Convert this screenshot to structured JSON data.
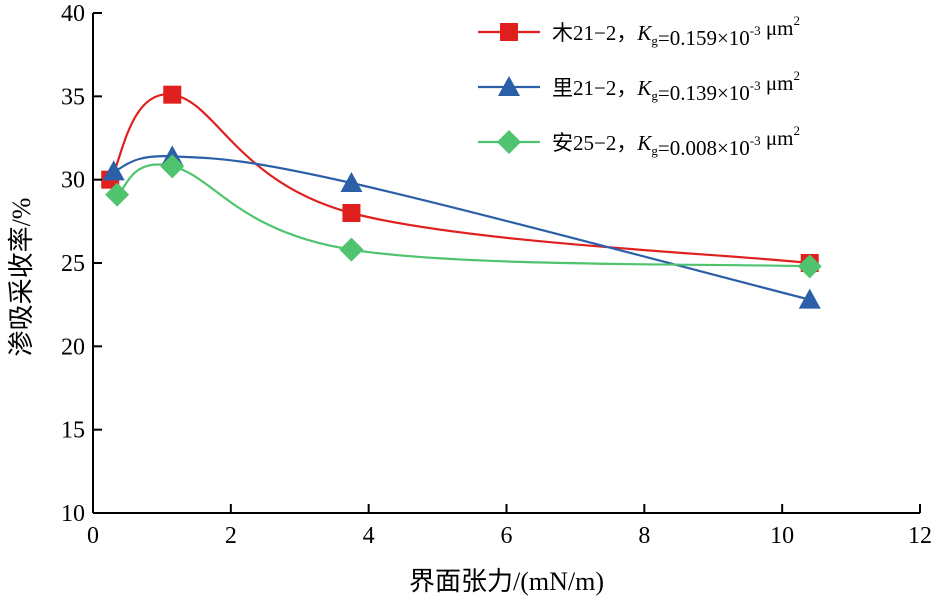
{
  "chart_data": {
    "type": "line",
    "title": "",
    "xlabel": "界面张力/(mN/m)",
    "ylabel": "渗吸采收率/%",
    "xlim": [
      0,
      12
    ],
    "ylim": [
      10,
      40
    ],
    "xticks": [
      0,
      2,
      4,
      6,
      8,
      10,
      12
    ],
    "yticks": [
      10,
      15,
      20,
      25,
      30,
      35,
      40
    ],
    "grid": false,
    "legend_position": "top-right",
    "series": [
      {
        "name": "木21−2，Kg=0.159×10⁻³ μm²",
        "legend_prefix": "木21−2，",
        "legend_k": "K",
        "legend_sub": "g",
        "legend_value": "=0.159×10",
        "legend_exp": "-3",
        "legend_unit": " μm",
        "legend_unit_exp": "2",
        "color": "#e0201f",
        "marker": "square",
        "x": [
          0.25,
          1.15,
          3.75,
          10.4
        ],
        "y": [
          30.0,
          35.1,
          28.0,
          25.0
        ]
      },
      {
        "name": "里21−2，Kg=0.139×10⁻³ μm²",
        "legend_prefix": "里21−2，",
        "legend_k": "K",
        "legend_sub": "g",
        "legend_value": "=0.139×10",
        "legend_exp": "-3",
        "legend_unit": " μm",
        "legend_unit_exp": "2",
        "color": "#2b5fa8",
        "marker": "triangle",
        "x": [
          0.3,
          1.15,
          3.75,
          10.4
        ],
        "y": [
          30.5,
          31.4,
          29.8,
          22.8
        ]
      },
      {
        "name": "安25−2，Kg=0.008×10⁻³ μm²",
        "legend_prefix": "安25−2，",
        "legend_k": "K",
        "legend_sub": "g",
        "legend_value": "=0.008×10",
        "legend_exp": "-3",
        "legend_unit": " μm",
        "legend_unit_exp": "2",
        "color": "#4fc36e",
        "marker": "diamond",
        "x": [
          0.35,
          1.15,
          3.75,
          10.4
        ],
        "y": [
          29.1,
          30.8,
          25.8,
          24.8
        ]
      }
    ]
  }
}
